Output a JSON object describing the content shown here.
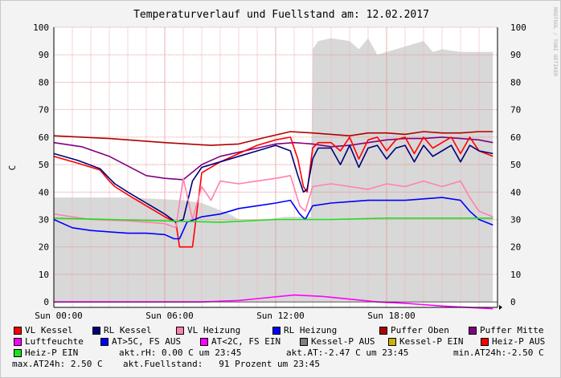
{
  "chart_data": {
    "type": "line",
    "title": "Temperaturverlauf und Fuellstand am: 12.02.2017",
    "watermark": "RRDTOOL / TOBI OETIKER",
    "ylabel": "C",
    "ylim": [
      -2,
      100
    ],
    "yticks": [
      0,
      10,
      20,
      30,
      40,
      50,
      60,
      70,
      80,
      90,
      100
    ],
    "xlim": [
      0,
      24
    ],
    "xticks": [
      {
        "t": 0,
        "label": "Sun 00:00"
      },
      {
        "t": 6,
        "label": "Sun 06:00"
      },
      {
        "t": 12,
        "label": "Sun 12:00"
      },
      {
        "t": 18,
        "label": "Sun 18:00"
      }
    ],
    "grid": true,
    "fill_area": {
      "name": "Fuellstand",
      "color": "#d8d8d8",
      "x": [
        0,
        4,
        7,
        8,
        9.5,
        10,
        11.5,
        12.5,
        13.9,
        14,
        14.3,
        15,
        16,
        16.5,
        17,
        17.5,
        18,
        19,
        20,
        20.5,
        21,
        22,
        23,
        23.75
      ],
      "y": [
        38,
        38,
        37,
        36,
        32,
        30,
        30,
        31,
        31,
        92,
        95,
        96,
        95,
        92,
        96,
        90,
        91,
        93,
        95,
        91,
        92,
        91,
        91,
        91
      ]
    },
    "series": [
      {
        "name": "Puffer Oben",
        "color": "#b00000",
        "x": [
          0,
          3,
          6,
          8.5,
          10,
          11.5,
          12.8,
          14,
          15,
          16,
          17,
          18,
          19,
          20,
          21,
          22,
          23,
          23.75
        ],
        "y": [
          60.5,
          59.5,
          58,
          57,
          57.5,
          60,
          62,
          61.5,
          61,
          60.5,
          61.5,
          61.5,
          61,
          62,
          61.5,
          61.5,
          62,
          62
        ]
      },
      {
        "name": "Puffer Mitte",
        "color": "#800080",
        "x": [
          0,
          1.5,
          3,
          4,
          5,
          6,
          7,
          8,
          9,
          10,
          11,
          12,
          13,
          14,
          15,
          16,
          17,
          18,
          19,
          20,
          21,
          22,
          23,
          23.75
        ],
        "y": [
          58,
          56.5,
          53,
          49.5,
          46,
          45,
          44.5,
          50,
          53,
          54.5,
          56,
          57.5,
          58,
          57.5,
          56.5,
          57,
          58,
          59,
          59.5,
          59.5,
          60,
          59.5,
          59,
          58
        ]
      },
      {
        "name": "VL Kessel",
        "color": "#ff0000",
        "x": [
          0,
          1.3,
          2.5,
          3,
          3.3,
          4,
          5,
          6,
          6.6,
          6.8,
          7.5,
          8,
          9,
          10,
          11,
          12,
          12.8,
          13.2,
          13.5,
          13.7,
          14,
          14.3,
          15,
          15.5,
          16,
          16.5,
          17,
          17.5,
          18,
          18.5,
          19,
          19.5,
          20,
          20.5,
          21,
          21.5,
          22,
          22.5,
          23,
          23.75
        ],
        "y": [
          53,
          50.5,
          48,
          44,
          42,
          39,
          35,
          31,
          29,
          20,
          20,
          47,
          51,
          54,
          57,
          59,
          60,
          52,
          42,
          40,
          56,
          58,
          58,
          55,
          60,
          52,
          59,
          60,
          55,
          59,
          60,
          54,
          60,
          56,
          58,
          60,
          54,
          60,
          55,
          53
        ]
      },
      {
        "name": "RL Kessel",
        "color": "#00007a",
        "x": [
          0,
          1.3,
          2.5,
          3,
          3.3,
          4,
          5,
          6,
          6.6,
          7,
          7.5,
          8,
          9,
          10,
          11,
          12,
          12.8,
          13.2,
          13.5,
          13.7,
          14,
          14.3,
          15,
          15.5,
          16,
          16.5,
          17,
          17.5,
          18,
          18.5,
          19,
          19.5,
          20,
          20.5,
          21,
          21.5,
          22,
          22.5,
          23,
          23.75
        ],
        "y": [
          54,
          51.5,
          48.5,
          45,
          43,
          40,
          36,
          32,
          29,
          30,
          44,
          49,
          51,
          53,
          55,
          57,
          55,
          46,
          40,
          41,
          52,
          56,
          56,
          50,
          57,
          49,
          56,
          57,
          52,
          56,
          57,
          51,
          57,
          53,
          55,
          57,
          51,
          57,
          55,
          54
        ]
      },
      {
        "name": "VL Heizung",
        "color": "#ff80b0",
        "x": [
          0,
          2,
          4,
          5,
          6,
          6.6,
          7,
          7.5,
          8,
          8.5,
          9,
          10,
          11,
          12,
          12.8,
          13.3,
          13.6,
          14,
          15,
          16,
          17,
          18,
          19,
          20,
          21,
          22,
          22.5,
          23,
          23.75
        ],
        "y": [
          32,
          30,
          29.5,
          29,
          28.5,
          27,
          45,
          30,
          42,
          37,
          44,
          43,
          44,
          45,
          46,
          35,
          33,
          42,
          43,
          42,
          41,
          43,
          42,
          44,
          42,
          44,
          38,
          33,
          31
        ]
      },
      {
        "name": "RL Heizung",
        "color": "#0000ff",
        "x": [
          0,
          1,
          2,
          3,
          4,
          5,
          6,
          6.5,
          6.8,
          7.2,
          8,
          9,
          10,
          11,
          12,
          12.8,
          13.3,
          13.6,
          14,
          15,
          16,
          17,
          18,
          19,
          20,
          21,
          22,
          22.5,
          23,
          23.75
        ],
        "y": [
          30,
          27,
          26,
          25.5,
          25,
          25,
          24.5,
          23,
          23,
          29,
          31,
          32,
          34,
          35,
          36,
          37,
          32,
          30,
          35,
          36,
          36.5,
          37,
          37,
          37,
          37.5,
          38,
          37,
          33,
          30,
          28
        ]
      },
      {
        "name": "Heiz-P EIN",
        "color": "#22dd22",
        "x": [
          0,
          3,
          6,
          9,
          12,
          15,
          18,
          21,
          23.75
        ],
        "y": [
          30.5,
          30,
          29.5,
          29,
          30,
          30,
          30.5,
          30.5,
          30.5
        ]
      },
      {
        "name": "Luftfeuchte",
        "color": "#ff00ff",
        "x": [
          0,
          4,
          8,
          10,
          11.5,
          13,
          14.5,
          16,
          17.5,
          19,
          21,
          23.75
        ],
        "y": [
          0,
          0,
          0,
          0.5,
          1.5,
          2.5,
          2,
          1,
          0,
          -0.5,
          -1.5,
          -2.5
        ]
      }
    ],
    "legend": [
      {
        "name": "VL Kessel",
        "color": "#ff0000"
      },
      {
        "name": "RL Kessel",
        "color": "#00007a"
      },
      {
        "name": "VL Heizung",
        "color": "#ff80b0"
      },
      {
        "name": "RL Heizung",
        "color": "#0000ff"
      },
      {
        "name": "Puffer Oben",
        "color": "#b00000"
      },
      {
        "name": "Puffer Mitte",
        "color": "#800080"
      },
      {
        "name": "Luftfeuchte",
        "color": "#ff00ff"
      },
      {
        "name": "AT>5C, FS AUS",
        "color": "#0000ff"
      },
      {
        "name": "AT<2C, FS EIN",
        "color": "#ff00ff"
      },
      {
        "name": "Kessel-P AUS",
        "color": "#808080"
      },
      {
        "name": "Kessel-P EIN",
        "color": "#c8b400"
      },
      {
        "name": "Heiz-P AUS",
        "color": "#ff0000"
      },
      {
        "name": "Heiz-P EIN",
        "color": "#22dd22"
      }
    ],
    "info": {
      "rh": "akt.rH: 0.00 C um 23:45",
      "at": "akt.AT:-2.47 C um 23:45",
      "min_at": "min.AT24h:-2.50 C",
      "max_at": "max.AT24h: 2.50 C",
      "fuellstand": "akt.Fuellstand:   91 Prozent um 23:45"
    }
  }
}
